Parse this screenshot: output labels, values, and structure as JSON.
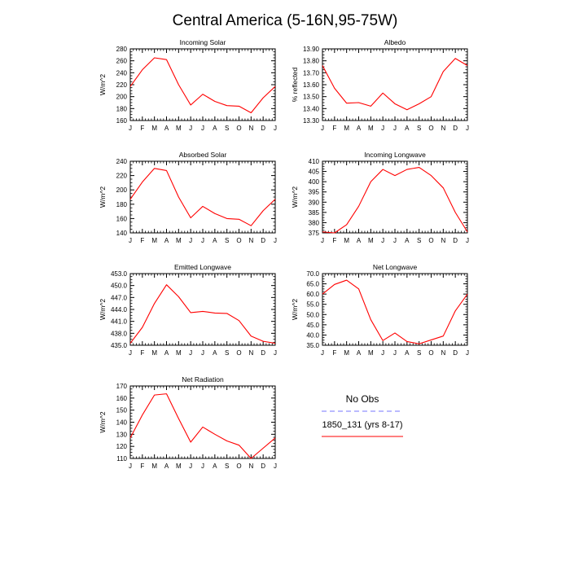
{
  "page": {
    "title": "Central America (5-16N,95-75W)"
  },
  "months": [
    "J",
    "F",
    "M",
    "A",
    "M",
    "J",
    "J",
    "A",
    "S",
    "O",
    "N",
    "D",
    "J"
  ],
  "chart_data": [
    {
      "type": "line",
      "title": "Incoming Solar",
      "ylabel": "W/m^2",
      "ylim": [
        160,
        280
      ],
      "yticks": [
        160,
        180,
        200,
        220,
        240,
        260,
        280
      ],
      "ytick_labels": [
        "160",
        "180",
        "200",
        "220",
        "240",
        "260",
        "280"
      ],
      "series": [
        {
          "name": "1850_131 (yrs 8-17)",
          "color": "#ff0000",
          "values": [
            217,
            245,
            265,
            262,
            220,
            186,
            204,
            192,
            185,
            184,
            173,
            198,
            217
          ]
        }
      ]
    },
    {
      "type": "line",
      "title": "Albedo",
      "ylabel": "% reflected",
      "ylim": [
        13.3,
        13.9
      ],
      "yticks": [
        13.3,
        13.4,
        13.5,
        13.6,
        13.7,
        13.8,
        13.9
      ],
      "ytick_labels": [
        "13.30",
        "13.40",
        "13.50",
        "13.60",
        "13.70",
        "13.80",
        "13.90"
      ],
      "series": [
        {
          "name": "1850_131 (yrs 8-17)",
          "color": "#ff0000",
          "values": [
            13.76,
            13.57,
            13.445,
            13.45,
            13.42,
            13.53,
            13.44,
            13.39,
            13.44,
            13.5,
            13.71,
            13.82,
            13.76
          ]
        }
      ]
    },
    {
      "type": "line",
      "title": "Absorbed Solar",
      "ylabel": "W/m^2",
      "ylim": [
        140,
        240
      ],
      "yticks": [
        140,
        160,
        180,
        200,
        220,
        240
      ],
      "ytick_labels": [
        "140",
        "160",
        "180",
        "200",
        "220",
        "240"
      ],
      "series": [
        {
          "name": "1850_131 (yrs 8-17)",
          "color": "#ff0000",
          "values": [
            187,
            211,
            230,
            227,
            190,
            161,
            177,
            167,
            160,
            159,
            150,
            171,
            187
          ]
        }
      ]
    },
    {
      "type": "line",
      "title": "Incoming Longwave",
      "ylabel": "W/m^2",
      "ylim": [
        375,
        410
      ],
      "yticks": [
        375,
        380,
        385,
        390,
        395,
        400,
        405,
        410
      ],
      "ytick_labels": [
        "375",
        "380",
        "385",
        "390",
        "395",
        "400",
        "405",
        "410"
      ],
      "series": [
        {
          "name": "1850_131 (yrs 8-17)",
          "color": "#ff0000",
          "values": [
            375.5,
            375,
            379,
            388,
            400,
            406,
            403,
            406,
            407,
            403,
            397,
            385,
            375.5
          ]
        }
      ]
    },
    {
      "type": "line",
      "title": "Emitted Longwave",
      "ylabel": "W/m^2",
      "ylim": [
        435,
        453
      ],
      "yticks": [
        435,
        438,
        441,
        444,
        447,
        450,
        453
      ],
      "ytick_labels": [
        "435.0",
        "438.0",
        "441.0",
        "444.0",
        "447.0",
        "450.0",
        "453.0"
      ],
      "series": [
        {
          "name": "1850_131 (yrs 8-17)",
          "color": "#ff0000",
          "values": [
            435.5,
            439.5,
            445.5,
            450.2,
            447.2,
            443.2,
            443.5,
            443.1,
            443.0,
            441.2,
            437.3,
            436.0,
            435.5
          ]
        }
      ]
    },
    {
      "type": "line",
      "title": "Net Longwave",
      "ylabel": "W/m^2",
      "ylim": [
        35,
        70
      ],
      "yticks": [
        35,
        40,
        45,
        50,
        55,
        60,
        65,
        70
      ],
      "ytick_labels": [
        "35.0",
        "40.0",
        "45.0",
        "50.0",
        "55.0",
        "60.0",
        "65.0",
        "70.0"
      ],
      "series": [
        {
          "name": "1850_131 (yrs 8-17)",
          "color": "#ff0000",
          "values": [
            60,
            64.7,
            66.8,
            62.5,
            47.5,
            37.3,
            41,
            36.8,
            35.7,
            37.6,
            39.5,
            51.8,
            60
          ]
        }
      ]
    },
    {
      "type": "line",
      "title": "Net Radiation",
      "ylabel": "W/m^2",
      "ylim": [
        110,
        170
      ],
      "yticks": [
        110,
        120,
        130,
        140,
        150,
        160,
        170
      ],
      "ytick_labels": [
        "110",
        "120",
        "130",
        "140",
        "150",
        "160",
        "170"
      ],
      "series": [
        {
          "name": "1850_131 (yrs 8-17)",
          "color": "#ff0000",
          "values": [
            127,
            146,
            162.5,
            163.5,
            143,
            123.5,
            136,
            130,
            124.5,
            121,
            110,
            118.5,
            127
          ]
        }
      ]
    }
  ],
  "legend": {
    "entries": [
      {
        "label": "No Obs",
        "color": "#7777ff",
        "style": "dashed"
      },
      {
        "label": "1850_131 (yrs 8-17)",
        "color": "#ff0000",
        "style": "solid"
      }
    ]
  }
}
